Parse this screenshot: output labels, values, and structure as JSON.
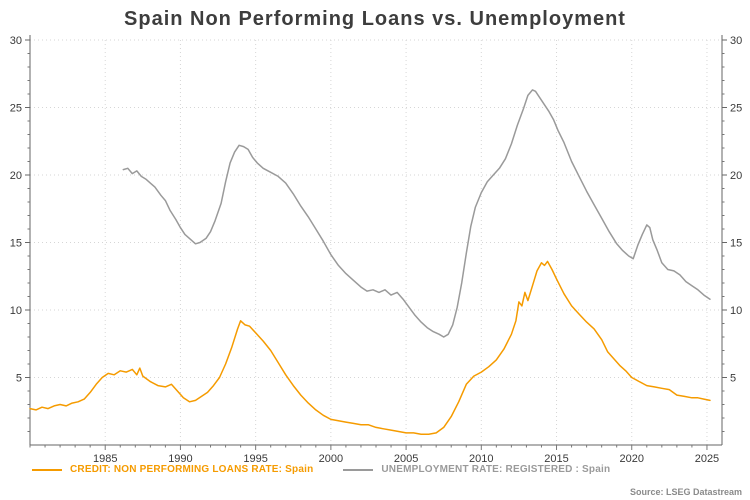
{
  "chart_data": {
    "type": "line",
    "title": "Spain Non Performing Loans vs. Unemployment",
    "source": "Source: LSEG Datastream",
    "xlim": [
      1980,
      2026
    ],
    "ylim": [
      0,
      30
    ],
    "x_ticks": [
      1985,
      1990,
      1995,
      2000,
      2005,
      2010,
      2015,
      2020,
      2025
    ],
    "y_ticks": [
      5,
      10,
      15,
      20,
      25,
      30
    ],
    "grid": true,
    "legend_position": "bottom",
    "series": [
      {
        "name": "CREDIT: NON PERFORMING LOANS RATE: Spain",
        "color": "#F59B00",
        "points": [
          [
            1980,
            2.7
          ],
          [
            1980.4,
            2.6
          ],
          [
            1980.8,
            2.8
          ],
          [
            1981.2,
            2.7
          ],
          [
            1981.6,
            2.9
          ],
          [
            1982,
            3.0
          ],
          [
            1982.4,
            2.9
          ],
          [
            1982.8,
            3.1
          ],
          [
            1983.2,
            3.2
          ],
          [
            1983.6,
            3.4
          ],
          [
            1984,
            3.9
          ],
          [
            1984.4,
            4.5
          ],
          [
            1984.8,
            5.0
          ],
          [
            1985.2,
            5.3
          ],
          [
            1985.6,
            5.2
          ],
          [
            1986,
            5.5
          ],
          [
            1986.4,
            5.4
          ],
          [
            1986.8,
            5.6
          ],
          [
            1987.1,
            5.2
          ],
          [
            1987.3,
            5.7
          ],
          [
            1987.5,
            5.1
          ],
          [
            1988,
            4.7
          ],
          [
            1988.5,
            4.4
          ],
          [
            1989,
            4.3
          ],
          [
            1989.4,
            4.5
          ],
          [
            1989.8,
            4.0
          ],
          [
            1990.2,
            3.5
          ],
          [
            1990.6,
            3.2
          ],
          [
            1991,
            3.3
          ],
          [
            1991.4,
            3.6
          ],
          [
            1991.8,
            3.9
          ],
          [
            1992.2,
            4.4
          ],
          [
            1992.6,
            5.0
          ],
          [
            1993,
            6.0
          ],
          [
            1993.4,
            7.2
          ],
          [
            1993.8,
            8.6
          ],
          [
            1994,
            9.2
          ],
          [
            1994.3,
            8.9
          ],
          [
            1994.6,
            8.8
          ],
          [
            1995,
            8.3
          ],
          [
            1995.5,
            7.7
          ],
          [
            1996,
            7.0
          ],
          [
            1996.5,
            6.1
          ],
          [
            1997,
            5.2
          ],
          [
            1997.5,
            4.4
          ],
          [
            1998,
            3.7
          ],
          [
            1998.5,
            3.1
          ],
          [
            1999,
            2.6
          ],
          [
            1999.5,
            2.2
          ],
          [
            2000,
            1.9
          ],
          [
            2000.5,
            1.8
          ],
          [
            2001,
            1.7
          ],
          [
            2001.5,
            1.6
          ],
          [
            2002,
            1.5
          ],
          [
            2002.5,
            1.5
          ],
          [
            2003,
            1.3
          ],
          [
            2003.5,
            1.2
          ],
          [
            2004,
            1.1
          ],
          [
            2004.5,
            1.0
          ],
          [
            2005,
            0.9
          ],
          [
            2005.5,
            0.9
          ],
          [
            2006,
            0.8
          ],
          [
            2006.5,
            0.8
          ],
          [
            2007,
            0.9
          ],
          [
            2007.5,
            1.3
          ],
          [
            2008,
            2.1
          ],
          [
            2008.5,
            3.2
          ],
          [
            2009,
            4.5
          ],
          [
            2009.5,
            5.1
          ],
          [
            2010,
            5.4
          ],
          [
            2010.5,
            5.8
          ],
          [
            2011,
            6.3
          ],
          [
            2011.5,
            7.1
          ],
          [
            2012,
            8.2
          ],
          [
            2012.3,
            9.2
          ],
          [
            2012.5,
            10.6
          ],
          [
            2012.7,
            10.3
          ],
          [
            2012.9,
            11.3
          ],
          [
            2013.1,
            10.7
          ],
          [
            2013.4,
            11.8
          ],
          [
            2013.7,
            12.9
          ],
          [
            2014,
            13.5
          ],
          [
            2014.2,
            13.3
          ],
          [
            2014.4,
            13.6
          ],
          [
            2014.7,
            13.0
          ],
          [
            2015,
            12.3
          ],
          [
            2015.5,
            11.2
          ],
          [
            2016,
            10.3
          ],
          [
            2016.5,
            9.7
          ],
          [
            2017,
            9.1
          ],
          [
            2017.5,
            8.6
          ],
          [
            2018,
            7.8
          ],
          [
            2018.4,
            6.9
          ],
          [
            2018.8,
            6.4
          ],
          [
            2019.2,
            5.9
          ],
          [
            2019.6,
            5.5
          ],
          [
            2020,
            5.0
          ],
          [
            2020.5,
            4.7
          ],
          [
            2021,
            4.4
          ],
          [
            2021.5,
            4.3
          ],
          [
            2022,
            4.2
          ],
          [
            2022.5,
            4.1
          ],
          [
            2023,
            3.7
          ],
          [
            2023.5,
            3.6
          ],
          [
            2024,
            3.5
          ],
          [
            2024.4,
            3.5
          ],
          [
            2024.8,
            3.4
          ],
          [
            2025.2,
            3.3
          ]
        ]
      },
      {
        "name": "UNEMPLOYMENT RATE: REGISTERED : Spain",
        "color": "#9A9A9A",
        "points": [
          [
            1986.2,
            20.4
          ],
          [
            1986.5,
            20.5
          ],
          [
            1986.8,
            20.1
          ],
          [
            1987.1,
            20.3
          ],
          [
            1987.4,
            19.9
          ],
          [
            1987.7,
            19.7
          ],
          [
            1988,
            19.4
          ],
          [
            1988.3,
            19.1
          ],
          [
            1988.7,
            18.5
          ],
          [
            1989,
            18.1
          ],
          [
            1989.3,
            17.4
          ],
          [
            1989.7,
            16.7
          ],
          [
            1990,
            16.1
          ],
          [
            1990.3,
            15.6
          ],
          [
            1990.7,
            15.2
          ],
          [
            1991,
            14.9
          ],
          [
            1991.3,
            15.0
          ],
          [
            1991.7,
            15.3
          ],
          [
            1992,
            15.8
          ],
          [
            1992.3,
            16.6
          ],
          [
            1992.7,
            17.9
          ],
          [
            1993,
            19.5
          ],
          [
            1993.3,
            20.9
          ],
          [
            1993.6,
            21.7
          ],
          [
            1993.9,
            22.2
          ],
          [
            1994.2,
            22.1
          ],
          [
            1994.5,
            21.9
          ],
          [
            1994.8,
            21.3
          ],
          [
            1995.1,
            20.9
          ],
          [
            1995.5,
            20.5
          ],
          [
            1996,
            20.2
          ],
          [
            1996.5,
            19.9
          ],
          [
            1997,
            19.4
          ],
          [
            1997.5,
            18.6
          ],
          [
            1998,
            17.7
          ],
          [
            1998.5,
            16.9
          ],
          [
            1999,
            16.0
          ],
          [
            1999.5,
            15.1
          ],
          [
            2000,
            14.1
          ],
          [
            2000.5,
            13.3
          ],
          [
            2001,
            12.7
          ],
          [
            2001.5,
            12.2
          ],
          [
            2002,
            11.7
          ],
          [
            2002.4,
            11.4
          ],
          [
            2002.8,
            11.5
          ],
          [
            2003.2,
            11.3
          ],
          [
            2003.6,
            11.5
          ],
          [
            2004,
            11.1
          ],
          [
            2004.4,
            11.3
          ],
          [
            2004.8,
            10.8
          ],
          [
            2005.2,
            10.2
          ],
          [
            2005.6,
            9.6
          ],
          [
            2006,
            9.1
          ],
          [
            2006.4,
            8.7
          ],
          [
            2006.8,
            8.4
          ],
          [
            2007.2,
            8.2
          ],
          [
            2007.5,
            8.0
          ],
          [
            2007.8,
            8.2
          ],
          [
            2008.1,
            8.9
          ],
          [
            2008.4,
            10.2
          ],
          [
            2008.7,
            12.0
          ],
          [
            2009,
            14.2
          ],
          [
            2009.3,
            16.2
          ],
          [
            2009.6,
            17.6
          ],
          [
            2010,
            18.7
          ],
          [
            2010.4,
            19.5
          ],
          [
            2010.8,
            20.0
          ],
          [
            2011.2,
            20.5
          ],
          [
            2011.6,
            21.2
          ],
          [
            2012,
            22.3
          ],
          [
            2012.4,
            23.7
          ],
          [
            2012.8,
            24.9
          ],
          [
            2013.1,
            25.9
          ],
          [
            2013.4,
            26.3
          ],
          [
            2013.6,
            26.2
          ],
          [
            2013.9,
            25.7
          ],
          [
            2014.2,
            25.2
          ],
          [
            2014.5,
            24.7
          ],
          [
            2014.8,
            24.1
          ],
          [
            2015.1,
            23.3
          ],
          [
            2015.5,
            22.4
          ],
          [
            2016,
            21.0
          ],
          [
            2016.5,
            19.9
          ],
          [
            2017,
            18.8
          ],
          [
            2017.5,
            17.8
          ],
          [
            2018,
            16.8
          ],
          [
            2018.5,
            15.8
          ],
          [
            2019,
            14.9
          ],
          [
            2019.4,
            14.4
          ],
          [
            2019.8,
            14.0
          ],
          [
            2020.1,
            13.8
          ],
          [
            2020.4,
            14.8
          ],
          [
            2020.7,
            15.6
          ],
          [
            2021,
            16.3
          ],
          [
            2021.2,
            16.1
          ],
          [
            2021.4,
            15.2
          ],
          [
            2021.7,
            14.4
          ],
          [
            2022,
            13.5
          ],
          [
            2022.4,
            13.0
          ],
          [
            2022.8,
            12.9
          ],
          [
            2023.2,
            12.6
          ],
          [
            2023.6,
            12.1
          ],
          [
            2024,
            11.8
          ],
          [
            2024.4,
            11.5
          ],
          [
            2024.8,
            11.1
          ],
          [
            2025.2,
            10.8
          ]
        ]
      }
    ]
  }
}
